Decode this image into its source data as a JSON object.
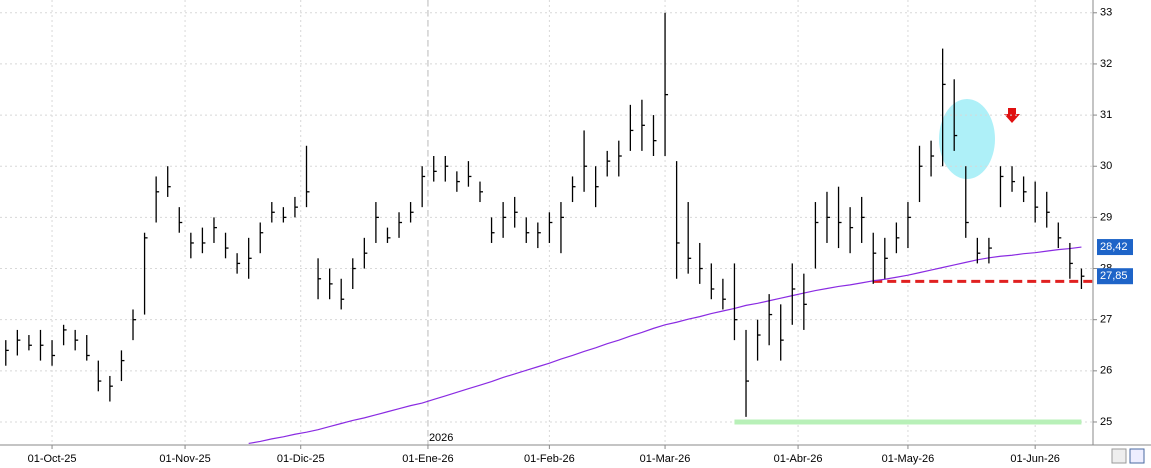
{
  "chart_data": {
    "type": "hlc",
    "x": [
      0,
      2,
      4,
      6,
      8,
      10,
      12,
      14,
      16,
      18,
      20,
      22,
      24,
      26,
      28,
      30,
      32,
      34,
      36,
      38,
      40,
      42,
      44,
      46,
      48,
      50,
      52,
      54,
      56,
      58,
      60,
      62,
      64,
      66,
      68,
      70,
      72,
      74,
      76,
      78,
      80,
      82,
      84,
      86,
      88,
      90,
      92,
      94,
      96,
      98,
      100,
      102,
      104,
      106,
      108,
      110,
      112,
      114,
      116,
      118,
      120,
      122,
      124,
      126,
      128,
      130,
      132,
      134,
      136,
      138,
      140,
      142,
      144,
      146,
      148,
      150,
      152,
      154,
      156,
      158,
      160,
      162,
      164,
      166,
      168,
      170,
      172,
      174,
      176,
      178,
      180,
      182,
      184,
      186
    ],
    "high": [
      26.6,
      26.8,
      26.7,
      26.8,
      26.6,
      26.9,
      26.8,
      26.7,
      26.2,
      25.9,
      26.4,
      27.2,
      28.7,
      29.8,
      30.0,
      29.2,
      28.7,
      28.8,
      29.0,
      28.7,
      28.3,
      28.6,
      28.9,
      29.3,
      29.2,
      29.4,
      30.4,
      28.2,
      28.0,
      27.8,
      28.2,
      28.6,
      29.3,
      28.8,
      29.1,
      29.3,
      30.0,
      30.2,
      30.2,
      29.9,
      30.1,
      29.7,
      29.0,
      29.3,
      29.4,
      29.0,
      28.9,
      29.1,
      29.3,
      29.8,
      30.7,
      30.0,
      30.3,
      30.5,
      31.2,
      31.3,
      31.0,
      33.0,
      30.1,
      29.3,
      28.5,
      28.1,
      27.8,
      28.1,
      26.8,
      27.0,
      27.5,
      27.3,
      28.1,
      27.9,
      29.3,
      29.5,
      29.6,
      29.2,
      29.4,
      28.7,
      28.6,
      28.9,
      29.3,
      30.4,
      30.5,
      32.3,
      31.7,
      30.0,
      28.6,
      28.6,
      30.0,
      30.0,
      29.8,
      29.7,
      29.5,
      28.9,
      28.5,
      28.0
    ],
    "low": [
      26.1,
      26.3,
      26.4,
      26.2,
      26.1,
      26.5,
      26.4,
      26.2,
      25.6,
      25.4,
      25.8,
      26.6,
      27.1,
      28.9,
      29.4,
      28.7,
      28.2,
      28.3,
      28.5,
      28.2,
      27.9,
      27.8,
      28.3,
      28.9,
      28.9,
      29.0,
      29.2,
      27.4,
      27.4,
      27.2,
      27.6,
      28.0,
      28.5,
      28.5,
      28.6,
      28.9,
      29.2,
      29.7,
      29.7,
      29.5,
      29.6,
      29.3,
      28.5,
      28.6,
      28.8,
      28.5,
      28.4,
      28.5,
      28.3,
      29.3,
      29.5,
      29.2,
      29.8,
      29.8,
      30.3,
      30.3,
      30.2,
      30.2,
      27.8,
      27.9,
      27.7,
      27.4,
      27.2,
      26.6,
      25.1,
      26.2,
      26.5,
      26.2,
      26.9,
      26.8,
      28.0,
      28.5,
      28.4,
      28.3,
      28.5,
      27.7,
      27.8,
      28.3,
      28.4,
      29.3,
      29.8,
      30.0,
      30.3,
      28.6,
      28.1,
      28.1,
      29.2,
      29.5,
      29.3,
      28.9,
      28.8,
      28.4,
      27.8,
      27.6
    ],
    "close": [
      26.4,
      26.6,
      26.5,
      26.5,
      26.3,
      26.8,
      26.6,
      26.3,
      25.8,
      25.7,
      26.2,
      27.0,
      28.6,
      29.5,
      29.6,
      28.9,
      28.5,
      28.5,
      28.8,
      28.4,
      28.1,
      28.2,
      28.7,
      29.1,
      29.0,
      29.2,
      29.5,
      27.8,
      27.7,
      27.4,
      28.0,
      28.3,
      29.0,
      28.6,
      28.9,
      29.1,
      29.8,
      29.9,
      30.0,
      29.7,
      29.8,
      29.5,
      28.7,
      29.0,
      29.1,
      28.7,
      28.7,
      28.9,
      29.0,
      29.6,
      30.0,
      29.6,
      30.1,
      30.2,
      30.7,
      30.8,
      30.5,
      31.4,
      28.5,
      28.2,
      28.0,
      27.6,
      27.4,
      27.0,
      25.8,
      26.7,
      27.1,
      26.6,
      27.6,
      27.3,
      28.9,
      29.0,
      28.9,
      28.8,
      29.0,
      28.3,
      28.2,
      28.6,
      29.0,
      30.0,
      30.2,
      31.6,
      30.6,
      28.9,
      28.3,
      28.4,
      29.8,
      29.7,
      29.5,
      29.2,
      29.1,
      28.6,
      28.1,
      27.85
    ],
    "bar_color": "#000000",
    "ma": {
      "color": "#8a2be2",
      "values": [
        null,
        null,
        null,
        null,
        null,
        null,
        null,
        null,
        null,
        null,
        null,
        null,
        null,
        null,
        null,
        null,
        null,
        null,
        null,
        null,
        null,
        24.58,
        24.62,
        24.67,
        24.71,
        24.76,
        24.8,
        24.85,
        24.91,
        24.97,
        25.03,
        25.08,
        25.14,
        25.2,
        25.26,
        25.32,
        25.37,
        25.44,
        25.51,
        25.58,
        25.65,
        25.72,
        25.79,
        25.87,
        25.94,
        26.01,
        26.08,
        26.15,
        26.23,
        26.3,
        26.38,
        26.45,
        26.53,
        26.6,
        26.68,
        26.75,
        26.83,
        26.9,
        26.95,
        27.01,
        27.06,
        27.12,
        27.17,
        27.22,
        27.28,
        27.32,
        27.37,
        27.42,
        27.47,
        27.52,
        27.57,
        27.61,
        27.65,
        27.68,
        27.72,
        27.76,
        27.79,
        27.83,
        27.87,
        27.92,
        27.97,
        28.02,
        28.07,
        28.12,
        28.17,
        28.21,
        28.24,
        28.26,
        28.29,
        28.31,
        28.34,
        28.37,
        28.39,
        28.42
      ]
    },
    "levels": [
      {
        "value": 27.75,
        "color": "#e02020",
        "x": [
          150,
          188
        ]
      },
      {
        "value": 25,
        "color": "#b8f0b8",
        "x": [
          126,
          186
        ]
      }
    ],
    "last_labels": [
      {
        "value": 28.42,
        "label": "28,42"
      },
      {
        "value": 27.85,
        "label": "27,85"
      }
    ],
    "year_marker": {
      "value": 73,
      "label": "2026"
    },
    "xlim": [
      -1,
      188
    ],
    "ylim": [
      24.55,
      33.25
    ],
    "xticks": [
      {
        "value": 8,
        "label": "01-Oct-25"
      },
      {
        "value": 31,
        "label": "01-Nov-25"
      },
      {
        "value": 51,
        "label": "01-Dic-25"
      },
      {
        "value": 73,
        "label": "01-Ene-26"
      },
      {
        "value": 94,
        "label": "01-Feb-26"
      },
      {
        "value": 114,
        "label": "01-Mar-26"
      },
      {
        "value": 137,
        "label": "01-Abr-26"
      },
      {
        "value": 156,
        "label": "01-May-26"
      },
      {
        "value": 178,
        "label": "01-Jun-26"
      }
    ],
    "yticks": [
      25,
      26,
      27,
      28,
      29,
      30,
      31,
      32,
      33
    ],
    "grid": true
  }
}
